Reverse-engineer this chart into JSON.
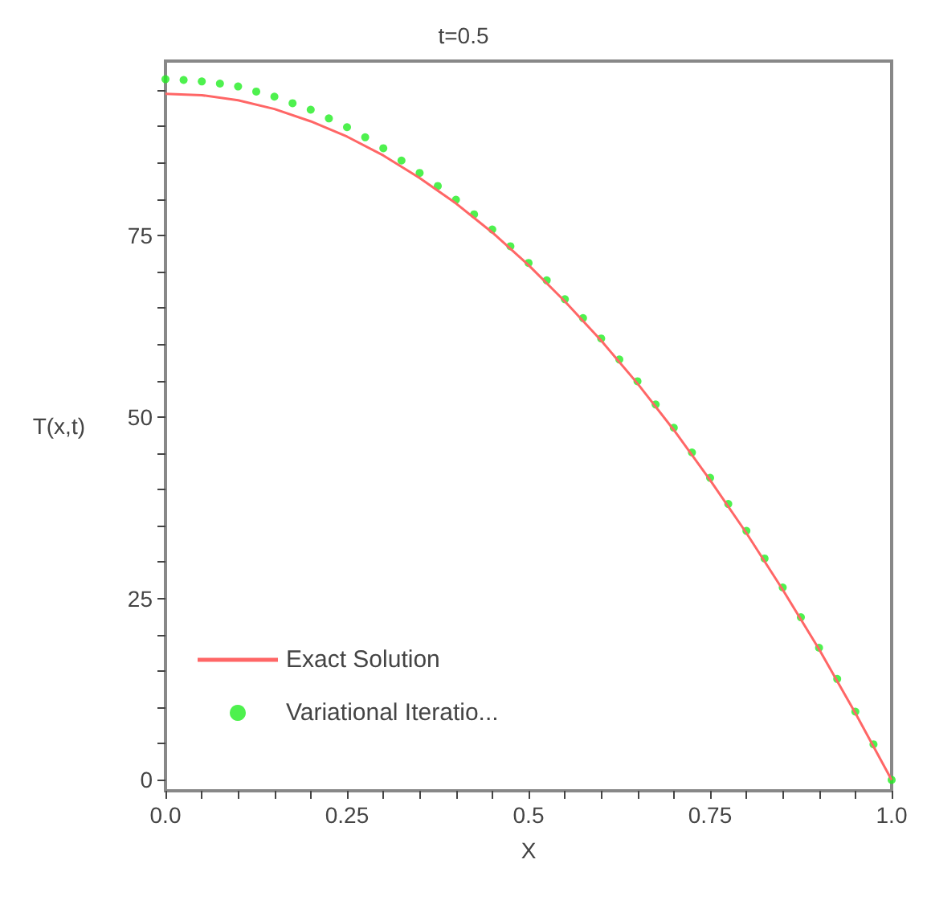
{
  "chart_data": {
    "type": "line",
    "title": "t=0.5",
    "xlabel": "X",
    "ylabel": "T(x,t)",
    "xlim": [
      0,
      1
    ],
    "ylim": [
      -1.5,
      99
    ],
    "xticks": [
      {
        "value": 0,
        "label": "0.0"
      },
      {
        "value": 0.05,
        "label": null
      },
      {
        "value": 0.1,
        "label": null
      },
      {
        "value": 0.15,
        "label": null
      },
      {
        "value": 0.2,
        "label": null
      },
      0.25,
      {
        "value": 0.3,
        "label": null
      },
      {
        "value": 0.35,
        "label": null
      },
      {
        "value": 0.4,
        "label": null
      },
      {
        "value": 0.45,
        "label": null
      },
      0.5,
      {
        "value": 0.55,
        "label": null
      },
      {
        "value": 0.6,
        "label": null
      },
      {
        "value": 0.65,
        "label": null
      },
      {
        "value": 0.7,
        "label": null
      },
      0.75,
      {
        "value": 0.8,
        "label": null
      },
      {
        "value": 0.85,
        "label": null
      },
      {
        "value": 0.9,
        "label": null
      },
      {
        "value": 0.95,
        "label": null
      },
      {
        "value": 1,
        "label": "1.0"
      }
    ],
    "yticks": [
      0,
      {
        "value": 5,
        "label": null
      },
      {
        "value": 10,
        "label": null
      },
      {
        "value": 15,
        "label": null
      },
      {
        "value": 20,
        "label": null
      },
      25,
      {
        "value": 30,
        "label": null
      },
      {
        "value": 35,
        "label": null
      },
      {
        "value": 40,
        "label": null
      },
      {
        "value": 45,
        "label": null
      },
      50,
      {
        "value": 55,
        "label": null
      },
      {
        "value": 60,
        "label": null
      },
      {
        "value": 65,
        "label": null
      },
      {
        "value": 70,
        "label": null
      },
      75,
      {
        "value": 80,
        "label": null
      },
      {
        "value": 85,
        "label": null
      },
      {
        "value": 90,
        "label": null
      },
      {
        "value": 95,
        "label": null
      }
    ],
    "grid": false,
    "legend": "bottom left",
    "series": [
      {
        "name": "Exact Solution",
        "color": "#ff6666",
        "marker": "none",
        "line_style": "solid",
        "x": [
          0,
          0.05,
          0.1,
          0.15,
          0.2,
          0.25,
          0.3,
          0.35,
          0.4,
          0.45,
          0.5,
          0.55,
          0.6,
          0.65,
          0.7,
          0.75,
          0.8,
          0.85,
          0.9,
          0.95,
          1
        ],
        "values": [
          94.5,
          94.3,
          93.6,
          92.4,
          90.7,
          88.6,
          86.0,
          82.9,
          79.4,
          75.4,
          70.9,
          65.9,
          60.5,
          54.6,
          48.2,
          41.3,
          34.0,
          26.2,
          18.0,
          9.2,
          0
        ]
      },
      {
        "name": "Variational Iteratio...",
        "color": "#22ee22",
        "type": "scatter",
        "marker": "circle",
        "x": [
          0,
          0.025,
          0.05,
          0.075,
          0.1,
          0.125,
          0.15,
          0.175,
          0.2,
          0.225,
          0.25,
          0.275,
          0.3,
          0.325,
          0.35,
          0.375,
          0.4,
          0.425,
          0.45,
          0.475,
          0.5,
          0.525,
          0.55,
          0.575,
          0.6,
          0.625,
          0.65,
          0.675,
          0.7,
          0.725,
          0.75,
          0.775,
          0.8,
          0.825,
          0.85,
          0.875,
          0.9,
          0.925,
          0.95,
          0.975,
          1
        ],
        "values": [
          96.5,
          96.4,
          96.2,
          95.9,
          95.5,
          94.8,
          94.1,
          93.2,
          92.3,
          91.1,
          89.9,
          88.5,
          87.0,
          85.3,
          83.6,
          81.8,
          79.9,
          77.9,
          75.8,
          73.5,
          71.2,
          68.8,
          66.2,
          63.6,
          60.8,
          57.9,
          54.9,
          51.7,
          48.5,
          45.1,
          41.6,
          38.0,
          34.3,
          30.5,
          26.5,
          22.4,
          18.2,
          13.9,
          9.4,
          4.9,
          0
        ]
      }
    ]
  }
}
